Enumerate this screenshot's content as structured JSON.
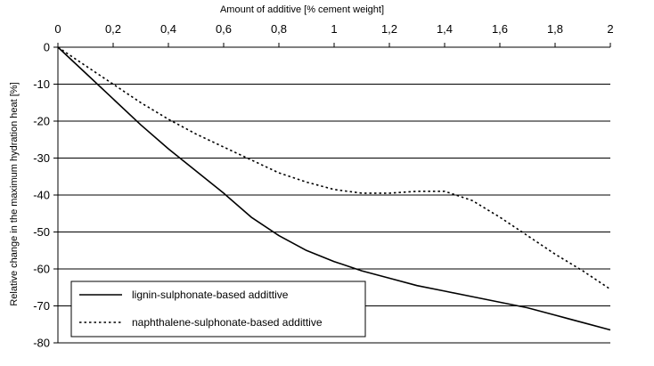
{
  "chart_data": {
    "type": "line",
    "title": "",
    "xlabel": "Amount of additive [% cement weight]",
    "ylabel": "Relative change in the maximum hydration heat [%]",
    "xlim": [
      0,
      2
    ],
    "ylim": [
      -80,
      0
    ],
    "x_axis_position": "top",
    "x_ticks": [
      0,
      0.2,
      0.4,
      0.6,
      0.8,
      1,
      1.2,
      1.4,
      1.6,
      1.8,
      2
    ],
    "x_tick_labels": [
      "0",
      "0,2",
      "0,4",
      "0,6",
      "0,8",
      "1",
      "1,2",
      "1,4",
      "1,6",
      "1,8",
      "2"
    ],
    "y_ticks": [
      0,
      -10,
      -20,
      -30,
      -40,
      -50,
      -60,
      -70,
      -80
    ],
    "y_tick_labels": [
      "0",
      "-10",
      "-20",
      "-30",
      "-40",
      "-50",
      "-60",
      "-70",
      "-80"
    ],
    "grid": "horizontal",
    "legend_position": "bottom-left",
    "series": [
      {
        "name": "lignin-sulphonate-based addittive",
        "style": "solid",
        "color": "#000000",
        "x": [
          0,
          0.1,
          0.2,
          0.3,
          0.4,
          0.5,
          0.6,
          0.7,
          0.8,
          0.9,
          1.0,
          1.1,
          1.2,
          1.3,
          1.4,
          1.5,
          1.6,
          1.7,
          1.8,
          1.9,
          2.0
        ],
        "y": [
          0,
          -7,
          -14,
          -21,
          -27.5,
          -33.5,
          -39.5,
          -46,
          -51,
          -55,
          -58,
          -60.5,
          -62.5,
          -64.5,
          -66,
          -67.5,
          -69,
          -70.5,
          -72.5,
          -74.5,
          -76.5
        ]
      },
      {
        "name": "naphthalene-sulphonate-based addittive",
        "style": "dotted",
        "color": "#000000",
        "x": [
          0,
          0.1,
          0.2,
          0.3,
          0.4,
          0.5,
          0.6,
          0.7,
          0.8,
          0.9,
          1.0,
          1.1,
          1.2,
          1.3,
          1.4,
          1.5,
          1.6,
          1.7,
          1.8,
          1.9,
          2.0
        ],
        "y": [
          0,
          -5,
          -10,
          -15,
          -19.5,
          -23.5,
          -27,
          -30.5,
          -34,
          -36.5,
          -38.5,
          -39.5,
          -39.5,
          -39,
          -39,
          -41.5,
          -46,
          -51,
          -56,
          -60.5,
          -65.5
        ]
      }
    ]
  }
}
